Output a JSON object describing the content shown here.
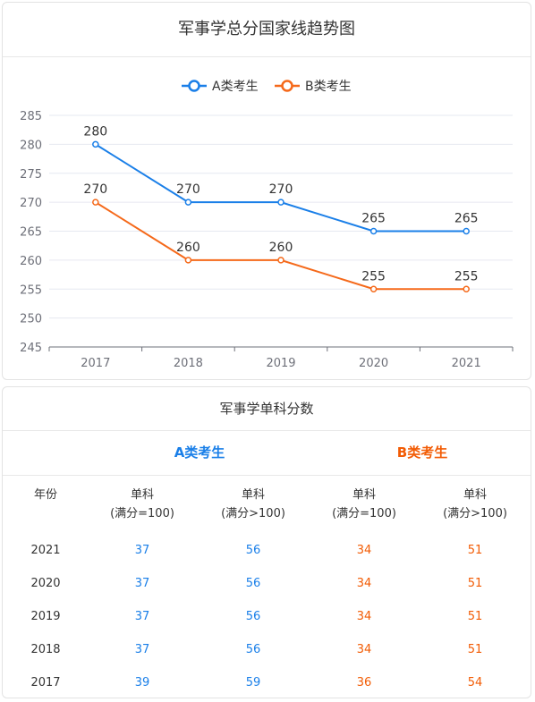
{
  "chart": {
    "title": "军事学总分国家线趋势图"
  },
  "chart_data": {
    "type": "line",
    "title": "军事学总分国家线趋势图",
    "categories": [
      "2017",
      "2018",
      "2019",
      "2020",
      "2021"
    ],
    "series": [
      {
        "name": "A类考生",
        "values": [
          280,
          270,
          270,
          265,
          265
        ],
        "color": "#1a7fe8"
      },
      {
        "name": "B类考生",
        "values": [
          270,
          260,
          260,
          255,
          255
        ],
        "color": "#f5691a"
      }
    ],
    "ylim": [
      245,
      285
    ],
    "yticks": [
      245,
      250,
      255,
      260,
      265,
      270,
      275,
      280,
      285
    ],
    "grid": true,
    "legend": "top-center",
    "data_labels": true
  },
  "table": {
    "title": "军事学单科分数",
    "group_a": "A类考生",
    "group_b": "B类考生",
    "col_year": "年份",
    "col_single_1": "单科",
    "col_single_2": "单科",
    "col_single_3": "单科",
    "col_single_4": "单科",
    "col_sub_1": "(满分=100)",
    "col_sub_2": "(满分>100)",
    "col_sub_3": "(满分=100)",
    "col_sub_4": "(满分>100)",
    "rows": [
      {
        "year": "2021",
        "a1": "37",
        "a2": "56",
        "b1": "34",
        "b2": "51"
      },
      {
        "year": "2020",
        "a1": "37",
        "a2": "56",
        "b1": "34",
        "b2": "51"
      },
      {
        "year": "2019",
        "a1": "37",
        "a2": "56",
        "b1": "34",
        "b2": "51"
      },
      {
        "year": "2018",
        "a1": "37",
        "a2": "56",
        "b1": "34",
        "b2": "51"
      },
      {
        "year": "2017",
        "a1": "39",
        "a2": "59",
        "b1": "36",
        "b2": "54"
      }
    ]
  },
  "colors": {
    "group_a": "#1a7fe8",
    "group_b": "#f25c05",
    "grid": "#e6e8f0",
    "axis": "#6e7079"
  }
}
